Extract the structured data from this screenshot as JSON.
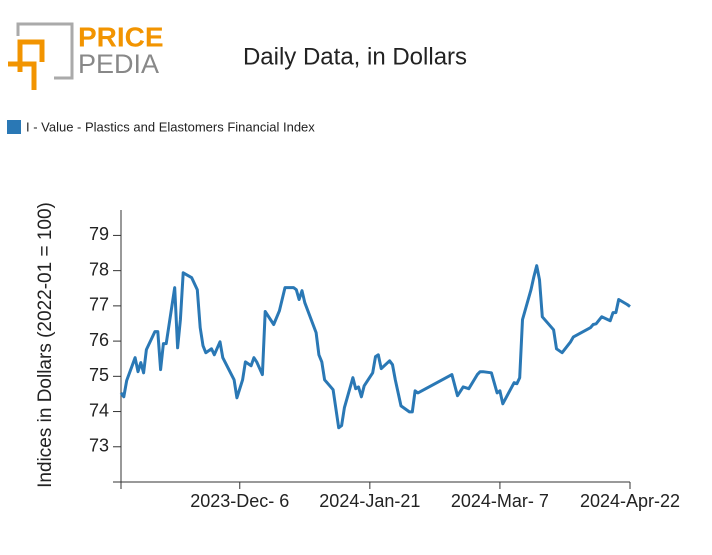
{
  "logo": {
    "top": "PRICE",
    "bottom": "PEDIA"
  },
  "chart_data": {
    "type": "line",
    "title": "Daily Data, in Dollars",
    "y_label": "Indices in Dollars (2022-01 = 100)",
    "x": [
      "2023-10-25",
      "2023-10-26",
      "2023-10-27",
      "2023-10-30",
      "2023-10-31",
      "2023-11-01",
      "2023-11-02",
      "2023-11-03",
      "2023-11-06",
      "2023-11-07",
      "2023-11-08",
      "2023-11-09",
      "2023-11-10",
      "2023-11-13",
      "2023-11-14",
      "2023-11-15",
      "2023-11-16",
      "2023-11-19",
      "2023-11-21",
      "2023-11-22",
      "2023-11-23",
      "2023-11-24",
      "2023-11-26",
      "2023-11-27",
      "2023-11-29",
      "2023-11-30",
      "2023-12-04",
      "2023-12-05",
      "2023-12-07",
      "2023-12-08",
      "2023-12-10",
      "2023-12-11",
      "2023-12-12",
      "2023-12-14",
      "2023-12-15",
      "2023-12-18",
      "2023-12-20",
      "2023-12-22",
      "2023-12-25",
      "2023-12-26",
      "2023-12-27",
      "2023-12-28",
      "2023-12-29",
      "2024-01-02",
      "2024-01-03",
      "2024-01-04",
      "2024-01-05",
      "2024-01-08",
      "2024-01-10",
      "2024-01-11",
      "2024-01-12",
      "2024-01-15",
      "2024-01-16",
      "2024-01-17",
      "2024-01-18",
      "2024-01-19",
      "2024-01-22",
      "2024-01-23",
      "2024-01-24",
      "2024-01-25",
      "2024-01-28",
      "2024-01-29",
      "2024-01-30",
      "2024-02-01",
      "2024-02-04",
      "2024-02-05",
      "2024-02-06",
      "2024-02-07",
      "2024-02-19",
      "2024-02-21",
      "2024-02-23",
      "2024-02-25",
      "2024-02-28",
      "2024-02-29",
      "2024-03-01",
      "2024-03-04",
      "2024-03-06",
      "2024-03-07",
      "2024-03-08",
      "2024-03-12",
      "2024-03-13",
      "2024-03-14",
      "2024-03-15",
      "2024-03-18",
      "2024-03-19",
      "2024-03-20",
      "2024-03-21",
      "2024-03-22",
      "2024-03-26",
      "2024-03-27",
      "2024-03-29",
      "2024-04-01",
      "2024-04-02",
      "2024-04-08",
      "2024-04-09",
      "2024-04-10",
      "2024-04-12",
      "2024-04-15",
      "2024-04-16",
      "2024-04-17",
      "2024-04-18",
      "2024-04-21",
      "2024-04-22"
    ],
    "series": [
      {
        "name": "I - Value - Plastics and Elastomers Financial Index",
        "color": "#2a78b5",
        "values": [
          74.53,
          74.42,
          74.88,
          75.53,
          75.13,
          75.39,
          75.1,
          75.76,
          76.27,
          76.27,
          75.19,
          75.93,
          75.93,
          77.52,
          75.81,
          76.61,
          77.94,
          77.8,
          77.46,
          76.38,
          75.87,
          75.67,
          75.78,
          75.61,
          75.98,
          75.53,
          74.9,
          74.39,
          74.9,
          75.41,
          75.3,
          75.53,
          75.41,
          75.05,
          76.84,
          76.47,
          76.86,
          77.52,
          77.52,
          77.46,
          77.18,
          77.43,
          77.09,
          76.24,
          75.61,
          75.41,
          74.9,
          74.62,
          73.54,
          73.6,
          74.11,
          74.96,
          74.65,
          74.7,
          74.42,
          74.73,
          75.1,
          75.56,
          75.61,
          75.22,
          75.44,
          75.33,
          74.9,
          74.16,
          73.99,
          73.99,
          74.59,
          74.53,
          75.05,
          74.45,
          74.7,
          74.65,
          75.05,
          75.13,
          75.13,
          75.1,
          74.53,
          74.59,
          74.22,
          74.82,
          74.79,
          74.96,
          76.61,
          77.46,
          77.83,
          78.14,
          77.74,
          76.69,
          76.32,
          75.78,
          75.67,
          75.98,
          76.12,
          76.38,
          76.47,
          76.49,
          76.69,
          76.58,
          76.81,
          76.81,
          77.18,
          77.04,
          76.98
        ]
      }
    ],
    "xlim": [
      "2023-10-25",
      "2024-04-22"
    ],
    "xticks": [
      {
        "value": "2023-12-06",
        "label": "2023-Dec- 6"
      },
      {
        "value": "2024-01-21",
        "label": "2024-Jan-21"
      },
      {
        "value": "2024-03-07",
        "label": "2024-Mar- 7"
      },
      {
        "value": "2024-04-22",
        "label": "2024-Apr-22"
      }
    ],
    "ylim": [
      72,
      79.75
    ],
    "yticks": [
      73,
      74,
      75,
      76,
      77,
      78,
      79
    ],
    "grid": false
  }
}
